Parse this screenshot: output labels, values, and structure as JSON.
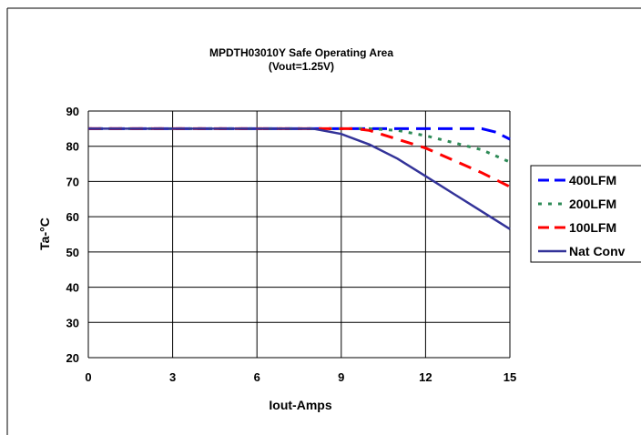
{
  "chart_data": {
    "type": "line",
    "title": "MPDTH03010Y Safe Operating Area",
    "subtitle": "(Vout=1.25V)",
    "xlabel": "Iout-Amps",
    "ylabel": "Ta-°C",
    "xlim": [
      0,
      15
    ],
    "ylim": [
      20,
      90
    ],
    "xticks": [
      0,
      3,
      6,
      9,
      12,
      15
    ],
    "yticks": [
      20,
      30,
      40,
      50,
      60,
      70,
      80,
      90
    ],
    "xtick_labels": [
      "0",
      "3",
      "6",
      "9",
      "12",
      "15"
    ],
    "ytick_labels": [
      "20",
      "30",
      "40",
      "50",
      "60",
      "70",
      "80",
      "90"
    ],
    "grid": true,
    "legend_position": "right",
    "series": [
      {
        "name": "400LFM",
        "color": "#0000ff",
        "style": "dash",
        "x": [
          0,
          3,
          6,
          9,
          12,
          13,
          14,
          14.5,
          15
        ],
        "y": [
          85,
          85,
          85,
          85,
          85,
          85,
          85,
          84,
          82
        ]
      },
      {
        "name": "200LFM",
        "color": "#2e8b57",
        "style": "dot",
        "x": [
          0,
          3,
          6,
          9,
          10,
          11,
          12,
          13,
          14,
          15
        ],
        "y": [
          85,
          85,
          85,
          85,
          85,
          84.5,
          83,
          81,
          79,
          75.5
        ]
      },
      {
        "name": "100LFM",
        "color": "#ff0000",
        "style": "longdash",
        "x": [
          0,
          3,
          6,
          9,
          9.5,
          10,
          11,
          12,
          13,
          14,
          15
        ],
        "y": [
          85,
          85,
          85,
          85,
          85,
          84.5,
          82,
          79.5,
          76,
          72.5,
          68.5
        ]
      },
      {
        "name": "Nat Conv",
        "color": "#333399",
        "style": "solid",
        "x": [
          0,
          3,
          6,
          7,
          8,
          9,
          10,
          11,
          12,
          13,
          14,
          15
        ],
        "y": [
          85,
          85,
          85,
          85,
          85,
          83.5,
          80.5,
          76.5,
          71.5,
          66.5,
          61.5,
          56.5
        ]
      }
    ]
  }
}
